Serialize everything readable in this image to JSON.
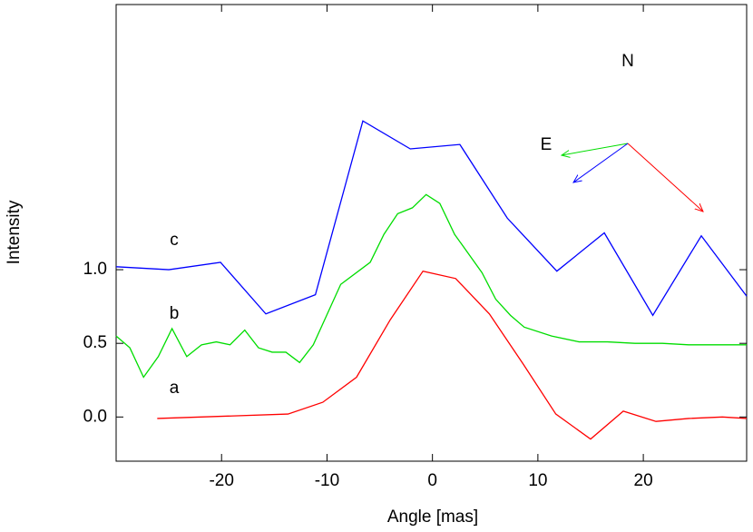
{
  "chart_data": {
    "type": "line",
    "x_label": "Angle [mas]",
    "y_label": "Intensity",
    "xlim": [
      -30,
      29.8
    ],
    "ylim": [
      -0.3,
      2.8
    ],
    "xticks": [
      -20,
      -10,
      0,
      10,
      20
    ],
    "yticks": [
      {
        "value": 0,
        "label": "0.0"
      },
      {
        "value": 0.5,
        "label": "0.5"
      },
      {
        "value": 1,
        "label": "1.0"
      }
    ],
    "grid": false,
    "annotations": [
      "N",
      "E"
    ],
    "series": [
      {
        "name": "a",
        "color": "#ff0000",
        "x": [
          -26.1,
          -13.7,
          -10.4,
          -7.2,
          -4.0,
          -0.9,
          2.2,
          5.4,
          8.6,
          11.7,
          15.0,
          18.1,
          21.2,
          24.3,
          27.5,
          29.8
        ],
        "values": [
          -0.01,
          0.02,
          0.1,
          0.27,
          0.66,
          0.99,
          0.94,
          0.7,
          0.36,
          0.02,
          -0.15,
          0.04,
          -0.03,
          -0.01,
          0,
          -0.01
        ]
      },
      {
        "name": "b",
        "color": "#00dd00",
        "x": [
          -30.0,
          -28.7,
          -27.4,
          -26.0,
          -24.7,
          -23.3,
          -21.9,
          -20.5,
          -19.2,
          -17.8,
          -16.5,
          -15.2,
          -13.9,
          -12.6,
          -11.3,
          -8.7,
          -5.9,
          -4.6,
          -3.3,
          -1.9,
          -0.6,
          0.7,
          2.1,
          4.7,
          6.0,
          7.4,
          8.7,
          11.3,
          13.9,
          16.6,
          19.2,
          21.8,
          24.3,
          26.9,
          29.8
        ],
        "values": [
          0.55,
          0.47,
          0.27,
          0.41,
          0.6,
          0.41,
          0.49,
          0.51,
          0.49,
          0.59,
          0.47,
          0.44,
          0.44,
          0.37,
          0.49,
          0.9,
          1.05,
          1.24,
          1.38,
          1.42,
          1.51,
          1.45,
          1.24,
          0.98,
          0.8,
          0.69,
          0.61,
          0.55,
          0.51,
          0.51,
          0.5,
          0.5,
          0.49,
          0.49,
          0.49
        ]
      },
      {
        "name": "c",
        "color": "#0000ff",
        "x": [
          -30,
          -25.0,
          -20.1,
          -15.8,
          -11.1,
          -6.6,
          -2.1,
          2.6,
          7.1,
          11.8,
          16.3,
          20.9,
          25.5,
          29.8
        ],
        "values": [
          1.02,
          1.0,
          1.05,
          0.7,
          0.83,
          2.01,
          1.82,
          1.85,
          1.35,
          0.99,
          1.25,
          0.69,
          1.23,
          0.82
        ]
      }
    ]
  }
}
